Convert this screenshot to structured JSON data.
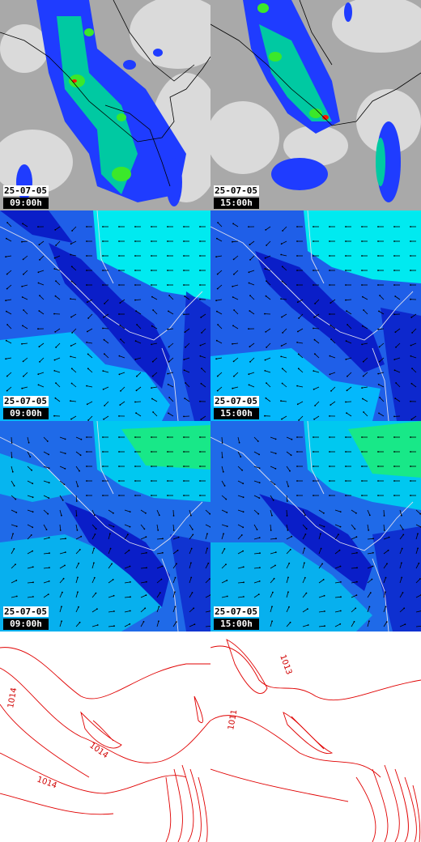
{
  "rows": [
    {
      "id": "precipitation",
      "colors": {
        "background": "#a9a9a9",
        "cloud_light": "#e3e3e3",
        "low": "#1f3cff",
        "mid": "#00c9a2",
        "high": "#3be82a",
        "peak": "#ff1800"
      },
      "panels": [
        {
          "date": "25-07-05",
          "time": "09:00h"
        },
        {
          "date": "25-07-05",
          "time": "15:00h"
        }
      ]
    },
    {
      "id": "wind-low-level",
      "colors": {
        "background": "#1f5fe8",
        "deep": "#0a1ec8",
        "light": "#00c8ff",
        "bright": "#00eaf0"
      },
      "panels": [
        {
          "date": "25-07-05",
          "time": "09:00h"
        },
        {
          "date": "25-07-05",
          "time": "15:00h"
        }
      ]
    },
    {
      "id": "wind-upper-level",
      "colors": {
        "background": "#1f6ae8",
        "deep": "#0a1ec8",
        "light": "#00c8f0",
        "bright": "#18e888"
      },
      "panels": [
        {
          "date": "25-07-05",
          "time": "09:00h"
        },
        {
          "date": "25-07-05",
          "time": "15:00h"
        }
      ]
    },
    {
      "id": "pressure",
      "colors": {
        "background": "#ffffff",
        "isobar": "#e00000"
      },
      "panels": [
        {
          "isobar_labels": [
            "1014",
            "1014",
            "1014"
          ]
        },
        {
          "isobar_labels": [
            "1011",
            "1013"
          ]
        }
      ]
    }
  ]
}
